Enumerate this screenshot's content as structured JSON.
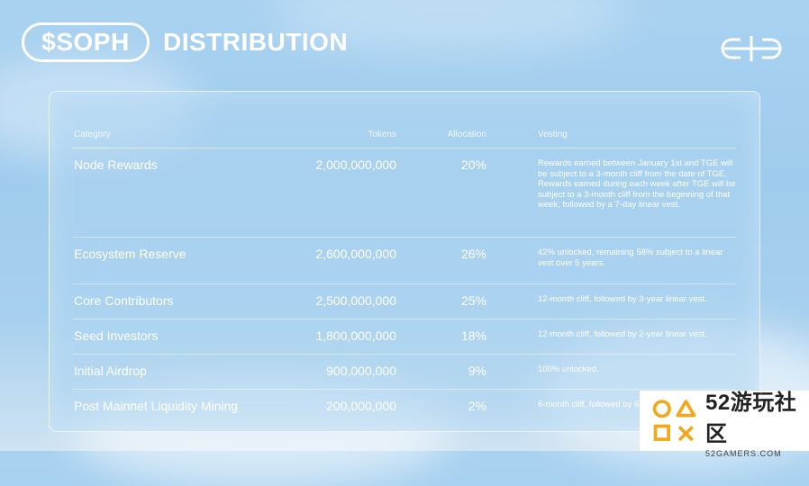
{
  "header": {
    "token": "$SOPH",
    "title": "DISTRIBUTION"
  },
  "logo": {
    "icon": "sophon-logo-icon"
  },
  "table": {
    "columns": [
      "Category",
      "Tokens",
      "Allocation",
      "Vesting"
    ],
    "rows": [
      {
        "category": "Node Rewards",
        "tokens": "2,000,000,000",
        "allocation": "20%",
        "vesting": "Rewards earned between January 1st and TGE will be subject to a 3-month cliff from the date of TGE. Rewards earned during each week after TGE will be subject to a 3-month cliff from the beginning of that week, followed by a 7-day linear vest."
      },
      {
        "category": "Ecosystem Reserve",
        "tokens": "2,600,000,000",
        "allocation": "26%",
        "vesting": "42% unlocked, remaining 58% subject to a linear vest over 5 years."
      },
      {
        "category": "Core Contributors",
        "tokens": "2,500,000,000",
        "allocation": "25%",
        "vesting": "12-month cliff, followed by 3-year linear vest."
      },
      {
        "category": "Seed Investors",
        "tokens": "1,800,000,000",
        "allocation": "18%",
        "vesting": "12-month cliff, followed by 2-year linear vest."
      },
      {
        "category": "Initial Airdrop",
        "tokens": "900,000,000",
        "allocation": "9%",
        "vesting": "100% unlocked."
      },
      {
        "category": "Post Mainnet Liquidity Mining",
        "tokens": "200,000,000",
        "allocation": "2%",
        "vesting": "6-month cliff, followed by 6-month linear vest"
      }
    ]
  },
  "watermark": {
    "main_num": "52",
    "main_text": "游玩社区",
    "sub": "52GAMERS.COM",
    "icon": "52gamers-logo-icon"
  }
}
